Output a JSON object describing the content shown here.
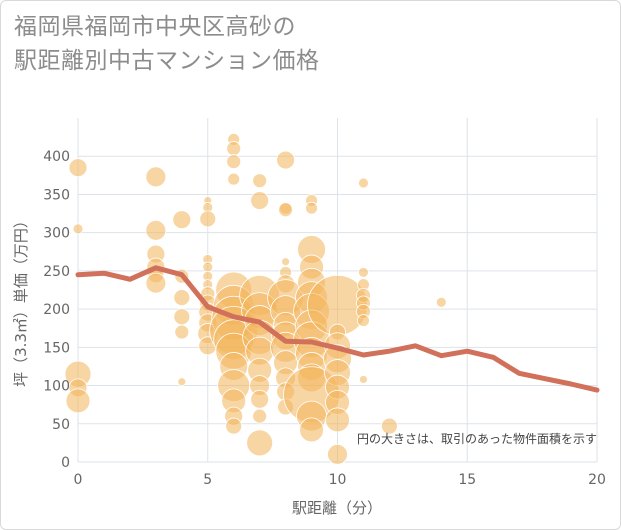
{
  "title_line1": "福岡県福岡市中央区高砂の",
  "title_line2": "駅距離別中古マンション価格",
  "chart_data": {
    "type": "scatter",
    "title": "福岡県福岡市中央区高砂の駅距離別中古マンション価格",
    "xlabel": "駅距離（分）",
    "ylabel": "坪（3.3㎡）単価（万円）",
    "xlim": [
      0,
      20
    ],
    "ylim": [
      0,
      450
    ],
    "xticks": [
      "0",
      "5",
      "10",
      "15",
      "20"
    ],
    "yticks": [
      "0",
      "50",
      "100",
      "150",
      "200",
      "250",
      "300",
      "350",
      "400"
    ],
    "grid": true,
    "note": "円の大きさは、取引のあった物件面積を示す",
    "colors": {
      "bubble": "#f2b45a",
      "line": "#d1705b",
      "grid": "#dde3ea"
    },
    "bubbles": [
      {
        "x": 0,
        "y": 385,
        "s": 9
      },
      {
        "x": 0,
        "y": 305,
        "s": 5
      },
      {
        "x": 0,
        "y": 115,
        "s": 13
      },
      {
        "x": 0,
        "y": 97,
        "s": 9
      },
      {
        "x": 0,
        "y": 80,
        "s": 12
      },
      {
        "x": 3,
        "y": 373,
        "s": 10
      },
      {
        "x": 3,
        "y": 303,
        "s": 10
      },
      {
        "x": 3,
        "y": 272,
        "s": 9
      },
      {
        "x": 3,
        "y": 255,
        "s": 9
      },
      {
        "x": 3,
        "y": 245,
        "s": 8
      },
      {
        "x": 3,
        "y": 234,
        "s": 10
      },
      {
        "x": 4,
        "y": 317,
        "s": 9
      },
      {
        "x": 4,
        "y": 243,
        "s": 7
      },
      {
        "x": 4,
        "y": 215,
        "s": 8
      },
      {
        "x": 4,
        "y": 190,
        "s": 8
      },
      {
        "x": 4,
        "y": 170,
        "s": 7
      },
      {
        "x": 4,
        "y": 105,
        "s": 4
      },
      {
        "x": 5,
        "y": 342,
        "s": 4
      },
      {
        "x": 5,
        "y": 333,
        "s": 5
      },
      {
        "x": 5,
        "y": 318,
        "s": 8
      },
      {
        "x": 5,
        "y": 265,
        "s": 5
      },
      {
        "x": 5,
        "y": 255,
        "s": 5
      },
      {
        "x": 5,
        "y": 243,
        "s": 5
      },
      {
        "x": 5,
        "y": 232,
        "s": 5
      },
      {
        "x": 5,
        "y": 220,
        "s": 7
      },
      {
        "x": 5,
        "y": 208,
        "s": 8
      },
      {
        "x": 5,
        "y": 196,
        "s": 9
      },
      {
        "x": 5,
        "y": 182,
        "s": 9
      },
      {
        "x": 5,
        "y": 168,
        "s": 10
      },
      {
        "x": 5,
        "y": 152,
        "s": 9
      },
      {
        "x": 6,
        "y": 422,
        "s": 6
      },
      {
        "x": 6,
        "y": 410,
        "s": 7
      },
      {
        "x": 6,
        "y": 393,
        "s": 7
      },
      {
        "x": 6,
        "y": 370,
        "s": 6
      },
      {
        "x": 6,
        "y": 225,
        "s": 18
      },
      {
        "x": 6,
        "y": 205,
        "s": 20
      },
      {
        "x": 6,
        "y": 188,
        "s": 22
      },
      {
        "x": 6,
        "y": 172,
        "s": 24
      },
      {
        "x": 6,
        "y": 160,
        "s": 20
      },
      {
        "x": 6,
        "y": 145,
        "s": 18
      },
      {
        "x": 6,
        "y": 125,
        "s": 14
      },
      {
        "x": 6,
        "y": 100,
        "s": 16
      },
      {
        "x": 6,
        "y": 80,
        "s": 12
      },
      {
        "x": 6,
        "y": 60,
        "s": 9
      },
      {
        "x": 6,
        "y": 47,
        "s": 8
      },
      {
        "x": 7,
        "y": 368,
        "s": 7
      },
      {
        "x": 7,
        "y": 342,
        "s": 9
      },
      {
        "x": 7,
        "y": 218,
        "s": 20
      },
      {
        "x": 7,
        "y": 198,
        "s": 18
      },
      {
        "x": 7,
        "y": 185,
        "s": 15
      },
      {
        "x": 7,
        "y": 163,
        "s": 17
      },
      {
        "x": 7,
        "y": 145,
        "s": 14
      },
      {
        "x": 7,
        "y": 120,
        "s": 12
      },
      {
        "x": 7,
        "y": 100,
        "s": 10
      },
      {
        "x": 7,
        "y": 82,
        "s": 9
      },
      {
        "x": 7,
        "y": 60,
        "s": 7
      },
      {
        "x": 7,
        "y": 25,
        "s": 13
      },
      {
        "x": 8,
        "y": 395,
        "s": 9
      },
      {
        "x": 8,
        "y": 332,
        "s": 6
      },
      {
        "x": 8,
        "y": 330,
        "s": 7
      },
      {
        "x": 8,
        "y": 262,
        "s": 4
      },
      {
        "x": 8,
        "y": 248,
        "s": 6
      },
      {
        "x": 8,
        "y": 233,
        "s": 9
      },
      {
        "x": 8,
        "y": 215,
        "s": 18
      },
      {
        "x": 8,
        "y": 198,
        "s": 15
      },
      {
        "x": 8,
        "y": 180,
        "s": 12
      },
      {
        "x": 8,
        "y": 165,
        "s": 14
      },
      {
        "x": 8,
        "y": 150,
        "s": 15
      },
      {
        "x": 8,
        "y": 130,
        "s": 12
      },
      {
        "x": 8,
        "y": 110,
        "s": 10
      },
      {
        "x": 8,
        "y": 92,
        "s": 9
      },
      {
        "x": 8,
        "y": 72,
        "s": 8
      },
      {
        "x": 9,
        "y": 342,
        "s": 6
      },
      {
        "x": 9,
        "y": 332,
        "s": 6
      },
      {
        "x": 9,
        "y": 278,
        "s": 14
      },
      {
        "x": 9,
        "y": 255,
        "s": 12
      },
      {
        "x": 9,
        "y": 235,
        "s": 14
      },
      {
        "x": 9,
        "y": 215,
        "s": 16
      },
      {
        "x": 9,
        "y": 197,
        "s": 18
      },
      {
        "x": 9,
        "y": 178,
        "s": 16
      },
      {
        "x": 9,
        "y": 160,
        "s": 18
      },
      {
        "x": 9,
        "y": 142,
        "s": 16
      },
      {
        "x": 9,
        "y": 125,
        "s": 14
      },
      {
        "x": 9,
        "y": 110,
        "s": 14
      },
      {
        "x": 9,
        "y": 88,
        "s": 28
      },
      {
        "x": 9,
        "y": 60,
        "s": 15
      },
      {
        "x": 9,
        "y": 42,
        "s": 12
      },
      {
        "x": 10,
        "y": 205,
        "s": 30
      },
      {
        "x": 10,
        "y": 170,
        "s": 8
      },
      {
        "x": 10,
        "y": 152,
        "s": 13
      },
      {
        "x": 10,
        "y": 135,
        "s": 14
      },
      {
        "x": 10,
        "y": 117,
        "s": 13
      },
      {
        "x": 10,
        "y": 98,
        "s": 12
      },
      {
        "x": 10,
        "y": 78,
        "s": 12
      },
      {
        "x": 10,
        "y": 55,
        "s": 12
      },
      {
        "x": 10,
        "y": 10,
        "s": 10
      },
      {
        "x": 11,
        "y": 365,
        "s": 5
      },
      {
        "x": 11,
        "y": 248,
        "s": 5
      },
      {
        "x": 11,
        "y": 232,
        "s": 6
      },
      {
        "x": 11,
        "y": 218,
        "s": 7
      },
      {
        "x": 11,
        "y": 208,
        "s": 7
      },
      {
        "x": 11,
        "y": 197,
        "s": 7
      },
      {
        "x": 11,
        "y": 185,
        "s": 6
      },
      {
        "x": 11,
        "y": 108,
        "s": 4
      },
      {
        "x": 12,
        "y": 47,
        "s": 8
      },
      {
        "x": 14,
        "y": 209,
        "s": 5
      }
    ],
    "line": {
      "x": [
        0,
        1,
        2,
        3,
        4,
        5,
        6,
        7,
        8,
        9,
        10,
        11,
        12,
        13,
        14,
        15,
        16,
        17,
        18,
        19,
        20
      ],
      "y": [
        245,
        247,
        239,
        254,
        245,
        203,
        190,
        183,
        158,
        157,
        149,
        140,
        145,
        152,
        139,
        145,
        137,
        116,
        109,
        102,
        94
      ]
    }
  }
}
